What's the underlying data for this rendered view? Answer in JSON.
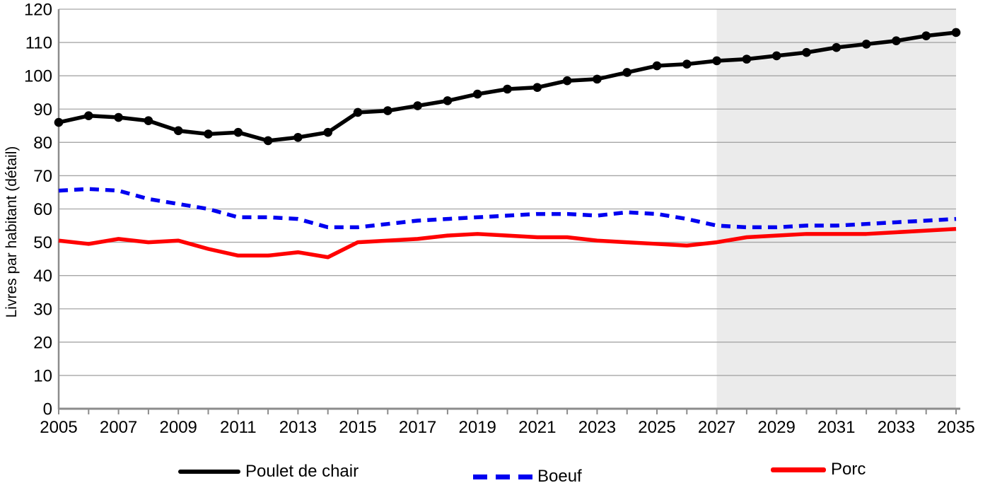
{
  "figure": {
    "background": "#ffffff"
  },
  "chart_data": {
    "type": "line",
    "title": "",
    "xlabel": "",
    "ylabel": "Livres par habitant (détail)",
    "ylim": [
      0,
      120
    ],
    "ytick_step": 10,
    "ytick_labels": [
      "0",
      "10",
      "20",
      "30",
      "40",
      "50",
      "60",
      "70",
      "80",
      "90",
      "100",
      "110",
      "120"
    ],
    "x": [
      2005,
      2006,
      2007,
      2008,
      2009,
      2010,
      2011,
      2012,
      2013,
      2014,
      2015,
      2016,
      2017,
      2018,
      2019,
      2020,
      2021,
      2022,
      2023,
      2024,
      2025,
      2026,
      2027,
      2028,
      2029,
      2030,
      2031,
      2032,
      2033,
      2034,
      2035
    ],
    "xtick_labels": [
      "2005",
      "2007",
      "2009",
      "2011",
      "2013",
      "2015",
      "2017",
      "2019",
      "2021",
      "2023",
      "2025",
      "2027",
      "2029",
      "2031",
      "2033",
      "2035"
    ],
    "grid": true,
    "legend_position": "bottom",
    "forecast_start_year": 2027,
    "colors": {
      "gridline": "#a6a6a6",
      "axis": "#8c8c8c",
      "forecast_band": "#ebebeb",
      "text": "#000000"
    },
    "series": [
      {
        "name": "Poulet de chair",
        "color": "#000000",
        "style": "solid",
        "marker": "circle",
        "values": [
          86,
          88,
          87.5,
          86.5,
          83.5,
          82.5,
          83,
          80.5,
          81.5,
          83,
          89,
          89.5,
          91,
          92.5,
          94.5,
          96,
          96.5,
          98.5,
          99,
          101,
          103,
          103.5,
          104.5,
          105,
          106,
          107,
          108.5,
          109.5,
          110.5,
          112,
          113
        ]
      },
      {
        "name": "Boeuf",
        "color": "#0000f0",
        "style": "dashed",
        "marker": "none",
        "values": [
          65.5,
          66,
          65.5,
          63,
          61.5,
          60,
          57.5,
          57.5,
          57,
          54.5,
          54.5,
          55.5,
          56.5,
          57,
          57.5,
          58,
          58.5,
          58.5,
          58,
          59,
          58.5,
          57,
          55,
          54.5,
          54.5,
          55,
          55,
          55.5,
          56,
          56.5,
          57
        ]
      },
      {
        "name": "Porc",
        "color": "#ff0000",
        "style": "solid",
        "marker": "none",
        "values": [
          50.5,
          49.5,
          51,
          50,
          50.5,
          48,
          46,
          46,
          47,
          45.5,
          50,
          50.5,
          51,
          52,
          52.5,
          52,
          51.5,
          51.5,
          50.5,
          50,
          49.5,
          49,
          50,
          51.5,
          52,
          52.5,
          52.5,
          52.5,
          53,
          53.5,
          54
        ]
      }
    ]
  }
}
